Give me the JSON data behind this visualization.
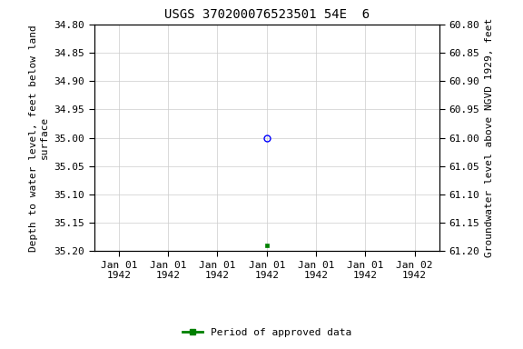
{
  "title": "USGS 370200076523501 54E  6",
  "ylabel_left": "Depth to water level, feet below land\nsurface",
  "ylabel_right": "Groundwater level above NGVD 1929, feet",
  "ylim_left": [
    34.8,
    35.2
  ],
  "ylim_right": [
    60.8,
    61.2
  ],
  "yticks_left": [
    34.8,
    34.85,
    34.9,
    34.95,
    35.0,
    35.05,
    35.1,
    35.15,
    35.2
  ],
  "yticks_right": [
    60.8,
    60.85,
    60.9,
    60.95,
    61.0,
    61.05,
    61.1,
    61.15,
    61.2
  ],
  "blue_point_x": 3,
  "blue_point_y": 35.0,
  "green_point_x": 3,
  "green_point_y": 35.19,
  "background_color": "#ffffff",
  "grid_color": "#cccccc",
  "title_fontsize": 10,
  "axis_fontsize": 8,
  "tick_fontsize": 8,
  "legend_label": "Period of approved data",
  "x_tick_labels": [
    "Jan 01\n1942",
    "Jan 01\n1942",
    "Jan 01\n1942",
    "Jan 01\n1942",
    "Jan 01\n1942",
    "Jan 01\n1942",
    "Jan 02\n1942"
  ],
  "x_tick_positions": [
    0,
    1,
    2,
    3,
    4,
    5,
    6
  ],
  "xlim": [
    -0.5,
    6.5
  ]
}
